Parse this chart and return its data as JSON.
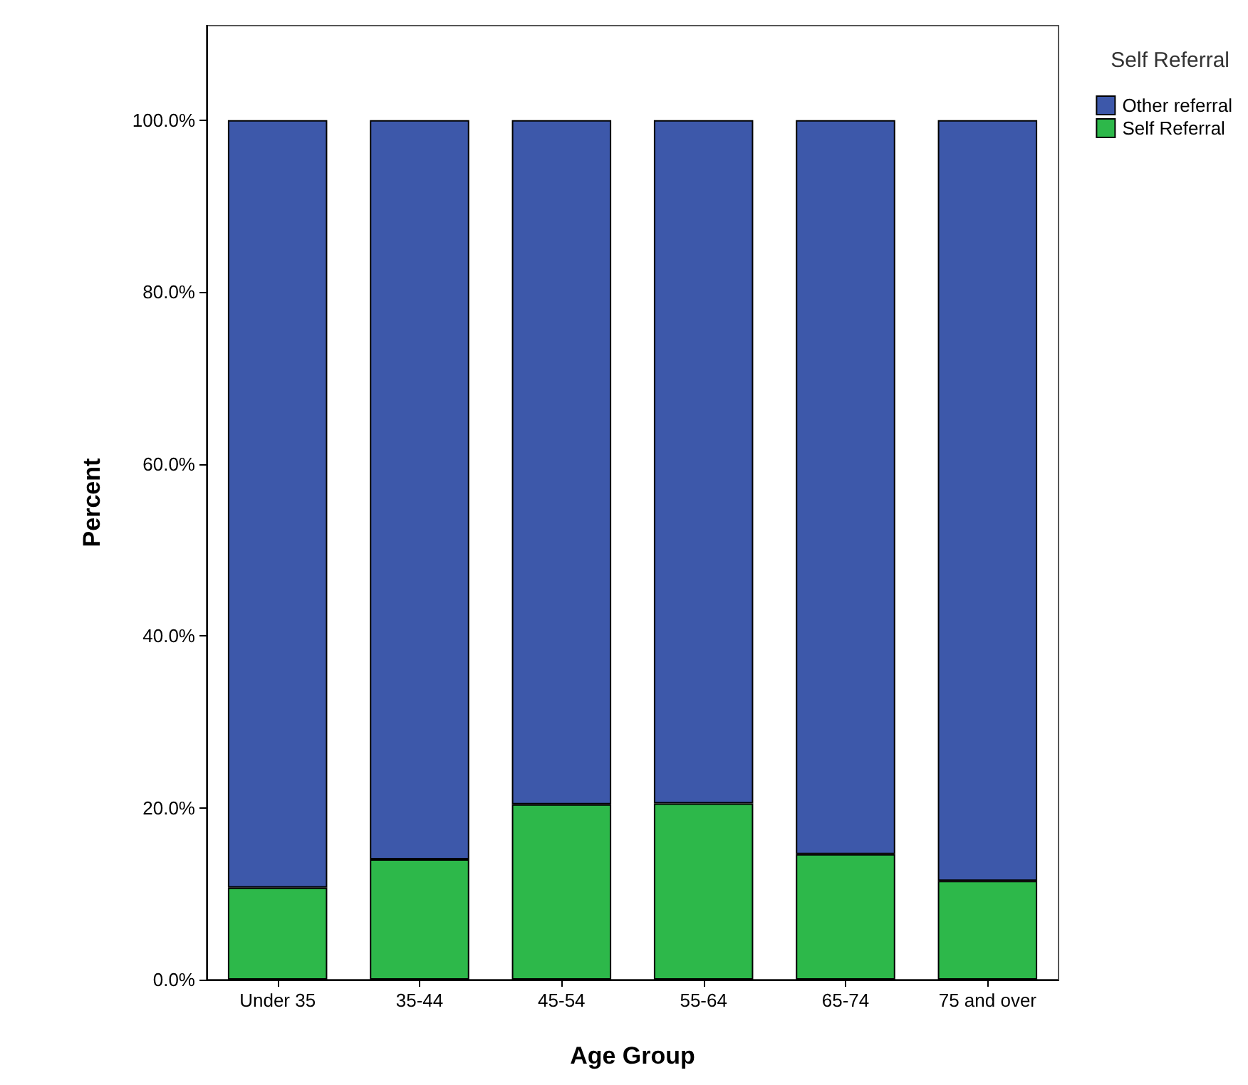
{
  "chart_data": {
    "type": "bar",
    "stacked": true,
    "xlabel": "Age Group",
    "ylabel": "Percent",
    "legend_title": "Self Referral",
    "legend": "top right",
    "categories": [
      "Under 35",
      "35-44",
      "45-54",
      "55-64",
      "65-74",
      "75 and over"
    ],
    "series": [
      {
        "name": "Self Referral",
        "color": "#2db84a",
        "values": [
          10.7,
          14.0,
          20.4,
          20.5,
          14.6,
          11.5
        ]
      },
      {
        "name": "Other referral",
        "color": "#3d58aa",
        "values": [
          89.3,
          86.0,
          79.6,
          79.5,
          85.4,
          88.5
        ]
      }
    ],
    "ylim": [
      0,
      111
    ],
    "yticks": [
      {
        "value": 0,
        "label": "0.0%"
      },
      {
        "value": 20,
        "label": "20.0%"
      },
      {
        "value": 40,
        "label": "40.0%"
      },
      {
        "value": 60,
        "label": "60.0%"
      },
      {
        "value": 80,
        "label": "80.0%"
      },
      {
        "value": 100,
        "label": "100.0%"
      }
    ],
    "grid": false
  }
}
